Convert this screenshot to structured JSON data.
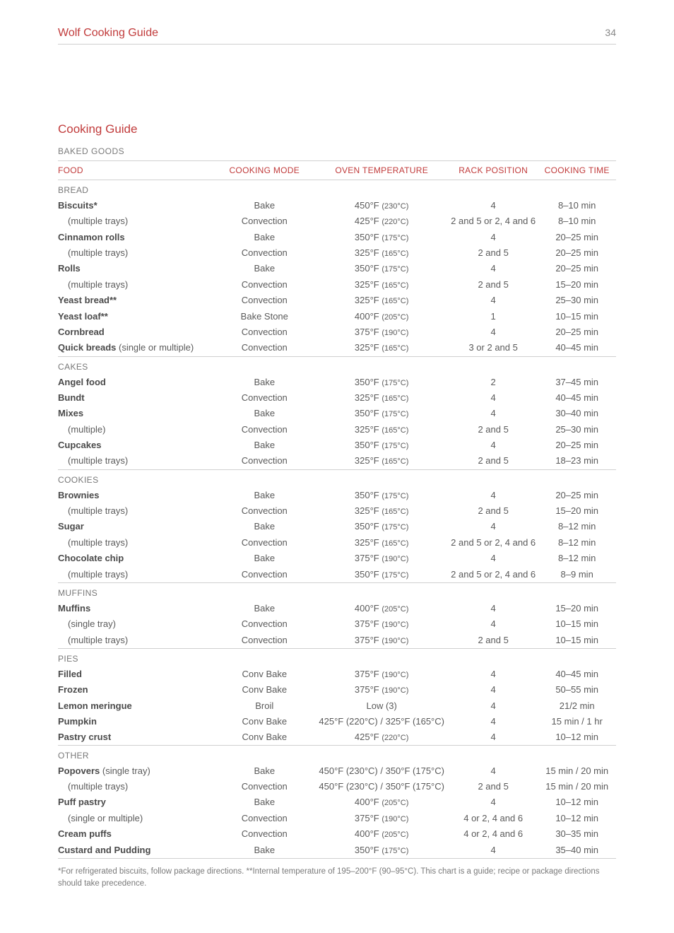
{
  "header": {
    "title": "Wolf Cooking Guide",
    "pageNumber": "34"
  },
  "section": {
    "title": "Cooking Guide",
    "category": "BAKED GOODS"
  },
  "columns": {
    "food": "FOOD",
    "mode": "COOKING MODE",
    "temp": "OVEN TEMPERATURE",
    "rack": "RACK POSITION",
    "time": "COOKING TIME"
  },
  "groups": [
    {
      "name": "BREAD",
      "rows": [
        {
          "food": "Biscuits*",
          "bold": true,
          "indent": false,
          "mode": "Bake",
          "tempF": "450°F",
          "tempC": "(230°C)",
          "rack": "4",
          "time": "8–10 min"
        },
        {
          "food": "(multiple trays)",
          "bold": false,
          "indent": true,
          "mode": "Convection",
          "tempF": "425°F",
          "tempC": "(220°C)",
          "rack": "2 and 5 or 2, 4 and 6",
          "time": "8–10 min"
        },
        {
          "food": "Cinnamon rolls",
          "bold": true,
          "indent": false,
          "mode": "Bake",
          "tempF": "350°F",
          "tempC": "(175°C)",
          "rack": "4",
          "time": "20–25 min"
        },
        {
          "food": "(multiple trays)",
          "bold": false,
          "indent": true,
          "mode": "Convection",
          "tempF": "325°F",
          "tempC": "(165°C)",
          "rack": "2 and 5",
          "time": "20–25 min"
        },
        {
          "food": "Rolls",
          "bold": true,
          "indent": false,
          "mode": "Bake",
          "tempF": "350°F",
          "tempC": "(175°C)",
          "rack": "4",
          "time": "20–25 min"
        },
        {
          "food": "(multiple trays)",
          "bold": false,
          "indent": true,
          "mode": "Convection",
          "tempF": "325°F",
          "tempC": "(165°C)",
          "rack": "2 and 5",
          "time": "15–20 min"
        },
        {
          "food": "Yeast bread**",
          "bold": true,
          "indent": false,
          "mode": "Convection",
          "tempF": "325°F",
          "tempC": "(165°C)",
          "rack": "4",
          "time": "25–30 min"
        },
        {
          "food": "Yeast loaf**",
          "bold": true,
          "indent": false,
          "mode": "Bake Stone",
          "tempF": "400°F",
          "tempC": "(205°C)",
          "rack": "1",
          "time": "10–15 min"
        },
        {
          "food": "Cornbread",
          "bold": true,
          "indent": false,
          "mode": "Convection",
          "tempF": "375°F",
          "tempC": "(190°C)",
          "rack": "4",
          "time": "20–25 min"
        },
        {
          "food": "Quick breads",
          "suffix": " (single or multiple)",
          "bold": true,
          "indent": false,
          "mode": "Convection",
          "tempF": "325°F",
          "tempC": "(165°C)",
          "rack": "3 or 2 and 5",
          "time": "40–45 min"
        }
      ]
    },
    {
      "name": "CAKES",
      "rows": [
        {
          "food": "Angel food",
          "bold": true,
          "indent": false,
          "mode": "Bake",
          "tempF": "350°F",
          "tempC": "(175°C)",
          "rack": "2",
          "time": "37–45 min"
        },
        {
          "food": "Bundt",
          "bold": true,
          "indent": false,
          "mode": "Convection",
          "tempF": "325°F",
          "tempC": "(165°C)",
          "rack": "4",
          "time": "40–45 min"
        },
        {
          "food": "Mixes",
          "bold": true,
          "indent": false,
          "mode": "Bake",
          "tempF": "350°F",
          "tempC": "(175°C)",
          "rack": "4",
          "time": "30–40 min"
        },
        {
          "food": "(multiple)",
          "bold": false,
          "indent": true,
          "mode": "Convection",
          "tempF": "325°F",
          "tempC": "(165°C)",
          "rack": "2 and 5",
          "time": "25–30 min"
        },
        {
          "food": "Cupcakes",
          "bold": true,
          "indent": false,
          "mode": "Bake",
          "tempF": "350°F",
          "tempC": "(175°C)",
          "rack": "4",
          "time": "20–25 min"
        },
        {
          "food": "(multiple trays)",
          "bold": false,
          "indent": true,
          "mode": "Convection",
          "tempF": "325°F",
          "tempC": "(165°C)",
          "rack": "2 and 5",
          "time": "18–23 min"
        }
      ]
    },
    {
      "name": "COOKIES",
      "rows": [
        {
          "food": "Brownies",
          "bold": true,
          "indent": false,
          "mode": "Bake",
          "tempF": "350°F",
          "tempC": "(175°C)",
          "rack": "4",
          "time": "20–25 min"
        },
        {
          "food": "(multiple trays)",
          "bold": false,
          "indent": true,
          "mode": "Convection",
          "tempF": "325°F",
          "tempC": "(165°C)",
          "rack": "2 and 5",
          "time": "15–20 min"
        },
        {
          "food": "Sugar",
          "bold": true,
          "indent": false,
          "mode": "Bake",
          "tempF": "350°F",
          "tempC": "(175°C)",
          "rack": "4",
          "time": "8–12 min"
        },
        {
          "food": "(multiple trays)",
          "bold": false,
          "indent": true,
          "mode": "Convection",
          "tempF": "325°F",
          "tempC": "(165°C)",
          "rack": "2 and 5 or 2, 4 and 6",
          "time": "8–12 min"
        },
        {
          "food": "Chocolate chip",
          "bold": true,
          "indent": false,
          "mode": "Bake",
          "tempF": "375°F",
          "tempC": "(190°C)",
          "rack": "4",
          "time": "8–12 min"
        },
        {
          "food": "(multiple trays)",
          "bold": false,
          "indent": true,
          "mode": "Convection",
          "tempF": "350°F",
          "tempC": "(175°C)",
          "rack": "2 and 5 or 2, 4 and 6",
          "time": "8–9 min"
        }
      ]
    },
    {
      "name": "MUFFINS",
      "rows": [
        {
          "food": "Muffins",
          "bold": true,
          "indent": false,
          "mode": "Bake",
          "tempF": "400°F",
          "tempC": "(205°C)",
          "rack": "4",
          "time": "15–20 min"
        },
        {
          "food": "(single tray)",
          "bold": false,
          "indent": true,
          "mode": "Convection",
          "tempF": "375°F",
          "tempC": "(190°C)",
          "rack": "4",
          "time": "10–15 min"
        },
        {
          "food": "(multiple trays)",
          "bold": false,
          "indent": true,
          "mode": "Convection",
          "tempF": "375°F",
          "tempC": "(190°C)",
          "rack": "2 and 5",
          "time": "10–15 min"
        }
      ]
    },
    {
      "name": "PIES",
      "rows": [
        {
          "food": "Filled",
          "bold": true,
          "indent": false,
          "mode": "Conv Bake",
          "tempF": "375°F",
          "tempC": "(190°C)",
          "rack": "4",
          "time": "40–45 min"
        },
        {
          "food": "Frozen",
          "bold": true,
          "indent": false,
          "mode": "Conv Bake",
          "tempF": "375°F",
          "tempC": "(190°C)",
          "rack": "4",
          "time": "50–55 min"
        },
        {
          "food": "Lemon meringue",
          "bold": true,
          "indent": false,
          "mode": "Broil",
          "tempRaw": "Low (3)",
          "rack": "4",
          "time": "21/2 min"
        },
        {
          "food": "Pumpkin",
          "bold": true,
          "indent": false,
          "mode": "Conv Bake",
          "tempRaw": "425°F (220°C) / 325°F (165°C)",
          "rack": "4",
          "time": "15 min / 1 hr"
        },
        {
          "food": "Pastry crust",
          "bold": true,
          "indent": false,
          "mode": "Conv Bake",
          "tempF": "425°F",
          "tempC": "(220°C)",
          "rack": "4",
          "time": "10–12 min"
        }
      ]
    },
    {
      "name": "OTHER",
      "rows": [
        {
          "food": "Popovers",
          "suffix": " (single tray)",
          "bold": true,
          "indent": false,
          "mode": "Bake",
          "tempRaw": "450°F (230°C) / 350°F (175°C)",
          "rack": "4",
          "time": "15 min / 20 min"
        },
        {
          "food": "(multiple trays)",
          "bold": false,
          "indent": true,
          "mode": "Convection",
          "tempRaw": "450°F (230°C) / 350°F (175°C)",
          "rack": "2 and 5",
          "time": "15 min / 20 min"
        },
        {
          "food": "Puff pastry",
          "bold": true,
          "indent": false,
          "mode": "Bake",
          "tempF": "400°F",
          "tempC": "(205°C)",
          "rack": "4",
          "time": "10–12 min"
        },
        {
          "food": "(single or multiple)",
          "bold": false,
          "indent": true,
          "mode": "Convection",
          "tempF": "375°F",
          "tempC": "(190°C)",
          "rack": "4 or 2, 4 and 6",
          "time": "10–12 min"
        },
        {
          "food": "Cream puffs",
          "bold": true,
          "indent": false,
          "mode": "Convection",
          "tempF": "400°F",
          "tempC": "(205°C)",
          "rack": "4 or 2, 4 and 6",
          "time": "30–35 min"
        },
        {
          "food": "Custard and Pudding",
          "bold": true,
          "indent": false,
          "mode": "Bake",
          "tempF": "350°F",
          "tempC": "(175°C)",
          "rack": "4",
          "time": "35–40 min"
        }
      ]
    }
  ],
  "footnote": "*For refrigerated biscuits, follow package directions. **Internal temperature of 195–200°F (90–95°C). This chart is a guide; recipe or package directions should take precedence."
}
